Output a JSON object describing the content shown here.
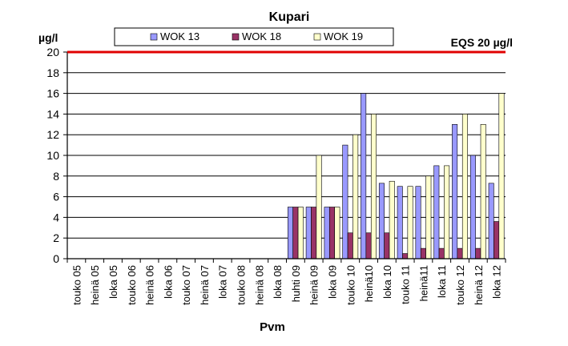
{
  "chart_data": {
    "type": "bar",
    "title": "Kupari",
    "ylabel": "µg/l",
    "xlabel": "Pvm",
    "ylim": [
      0,
      20
    ],
    "yticks": [
      0,
      2,
      4,
      6,
      8,
      10,
      12,
      14,
      16,
      18,
      20
    ],
    "grid": true,
    "legend_position": "top",
    "reference_line": {
      "value": 20,
      "label": "EQS 20 µg/l",
      "color": "#e00000"
    },
    "categories": [
      "touko 05",
      "heinä 05",
      "loka 05",
      "touko 06",
      "heinä 06",
      "loka 06",
      "touko 07",
      "heinä 07",
      "loka 07",
      "touko 08",
      "heinä 08",
      "loka 08",
      "huhti 09",
      "heinä 09",
      "loka 09",
      "touko 10",
      "heinä10",
      "loka 10",
      "touko 11",
      "heinä11",
      "loka 11",
      "touko 12",
      "heinä 12",
      "loka 12"
    ],
    "series": [
      {
        "name": "WOK 13",
        "color": "#9999ff",
        "values": [
          null,
          null,
          null,
          null,
          null,
          null,
          null,
          null,
          null,
          null,
          null,
          null,
          5,
          5,
          5,
          11,
          16,
          7.3,
          7,
          7,
          9,
          13,
          10,
          7.3
        ]
      },
      {
        "name": "WOK 18",
        "color": "#993366",
        "values": [
          null,
          null,
          null,
          null,
          null,
          null,
          null,
          null,
          null,
          null,
          null,
          null,
          5,
          5,
          5,
          2.5,
          2.5,
          2.5,
          0.5,
          1,
          1,
          1,
          1,
          3.6
        ]
      },
      {
        "name": "WOK 19",
        "color": "#ffffcc",
        "values": [
          null,
          null,
          null,
          null,
          null,
          null,
          null,
          null,
          null,
          null,
          null,
          null,
          5,
          10,
          5,
          12,
          14,
          7.5,
          7,
          8,
          9,
          14,
          13,
          16
        ]
      }
    ]
  }
}
